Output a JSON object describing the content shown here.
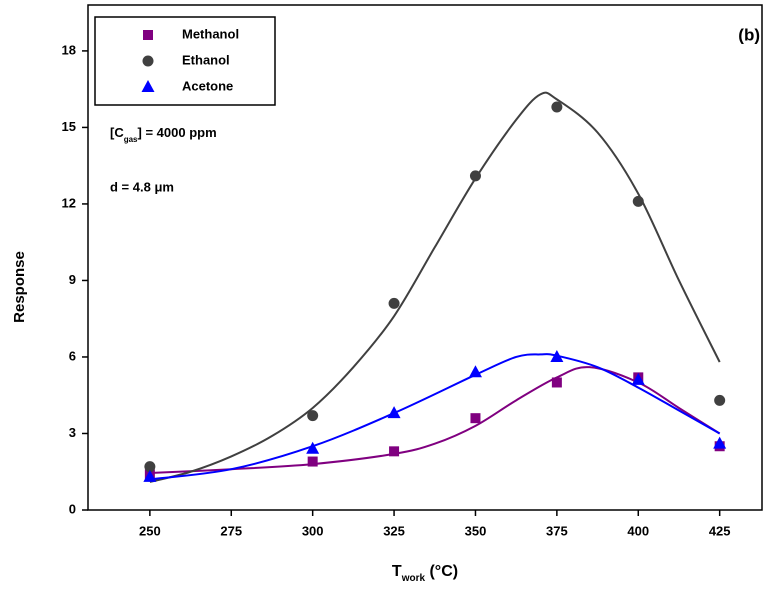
{
  "chart_data": {
    "type": "scatter",
    "panel_label": "(b)",
    "x_label": {
      "main": "T",
      "sub": "work",
      "unit": " (°C)"
    },
    "y_label": "Response",
    "annotations": {
      "concentration": {
        "pre": "[C",
        "sub": "gas",
        "post": "] = 4000 ppm"
      },
      "thickness": "d = 4.8 μm"
    },
    "xlim": [
      231,
      438
    ],
    "ylim": [
      0,
      19.8
    ],
    "xticks": [
      250,
      275,
      300,
      325,
      350,
      375,
      400,
      425
    ],
    "yticks": [
      0,
      3,
      6,
      9,
      12,
      15,
      18
    ],
    "legend": "top-left",
    "series": [
      {
        "name": "Methanol",
        "color": "#800080",
        "marker": "square",
        "x": [
          250,
          300,
          325,
          350,
          375,
          400,
          425
        ],
        "values": [
          1.4,
          1.9,
          2.3,
          3.6,
          5.0,
          5.2,
          2.5
        ],
        "fit": {
          "x": [
            250,
            275,
            300,
            325,
            337.5,
            350,
            362.5,
            375,
            385,
            400,
            412.5,
            425
          ],
          "values": [
            1.45,
            1.6,
            1.8,
            2.2,
            2.6,
            3.3,
            4.3,
            5.2,
            5.6,
            5.0,
            4.0,
            3.0
          ]
        }
      },
      {
        "name": "Ethanol",
        "color": "#404040",
        "marker": "circle",
        "x": [
          250,
          300,
          325,
          350,
          375,
          400,
          425
        ],
        "values": [
          1.7,
          3.7,
          8.1,
          13.1,
          15.8,
          12.1,
          4.3
        ],
        "fit": {
          "x": [
            250,
            262.5,
            275,
            287.5,
            300,
            312.5,
            325,
            337.5,
            350,
            362.5,
            370,
            375,
            387.5,
            400,
            412.5,
            425
          ],
          "values": [
            1.1,
            1.5,
            2.1,
            2.9,
            4.0,
            5.6,
            7.6,
            10.3,
            13.0,
            15.3,
            16.3,
            16.1,
            14.8,
            12.4,
            9.0,
            5.8
          ]
        }
      },
      {
        "name": "Acetone",
        "color": "#0000ff",
        "marker": "triangle",
        "x": [
          250,
          300,
          325,
          350,
          375,
          400,
          425
        ],
        "values": [
          1.3,
          2.4,
          3.8,
          5.4,
          6.0,
          5.1,
          2.6
        ],
        "fit": {
          "x": [
            250,
            275,
            300,
            325,
            350,
            362.5,
            370,
            375,
            387.5,
            400,
            412.5,
            425
          ],
          "values": [
            1.2,
            1.6,
            2.5,
            3.8,
            5.3,
            6.0,
            6.1,
            6.05,
            5.6,
            4.8,
            3.9,
            3.0
          ]
        }
      }
    ]
  }
}
